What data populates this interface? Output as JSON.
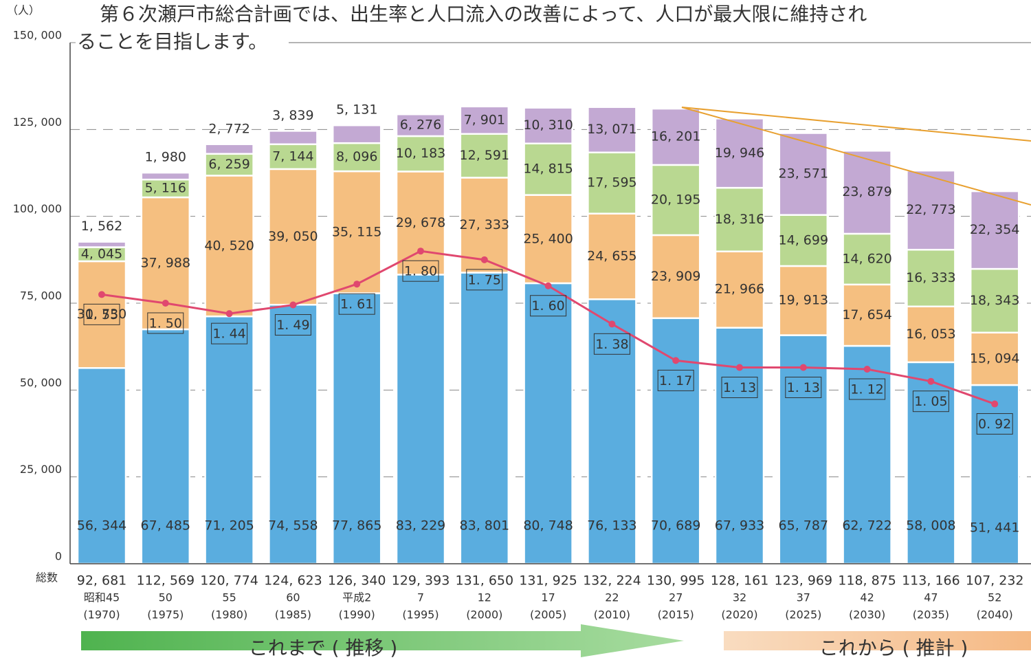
{
  "chart_data": {
    "type": "bar",
    "title_lines": [
      "第６次瀬戸市総合計画では、出生率と人口流入の改善によって、人口が最大限に維持され",
      "ることを目指します。"
    ],
    "y_unit": "（人）",
    "categories": [
      "昭和45",
      "50",
      "55",
      "60",
      "平成2",
      "7",
      "12",
      "17",
      "22",
      "27",
      "32",
      "37",
      "42",
      "47",
      "52"
    ],
    "years": [
      "(1970)",
      "(1975)",
      "(1980)",
      "(1985)",
      "(1990)",
      "(1995)",
      "(2000)",
      "(2005)",
      "(2010)",
      "(2015)",
      "(2020)",
      "(2025)",
      "(2030)",
      "(2035)",
      "(2040)"
    ],
    "totals": {
      "label": "総数",
      "values": [
        92681,
        112569,
        120774,
        124623,
        126340,
        129393,
        131650,
        131925,
        132224,
        130995,
        128161,
        123969,
        118875,
        113166,
        107232
      ],
      "value_labels": [
        "92, 681",
        "112, 569",
        "120, 774",
        "124, 623",
        "126, 340",
        "129, 393",
        "131, 650",
        "131, 925",
        "132, 224",
        "130, 995",
        "128, 161",
        "123, 969",
        "118, 875",
        "113, 166",
        "107, 232"
      ]
    },
    "series": [
      {
        "color": "#5aaddf",
        "values": [
          56344,
          67485,
          71205,
          74558,
          77865,
          83229,
          83801,
          80748,
          76133,
          70689,
          67933,
          65787,
          62722,
          58008,
          51441
        ],
        "value_labels": [
          "56, 344",
          "67, 485",
          "71, 205",
          "74, 558",
          "77, 865",
          "83, 229",
          "83, 801",
          "80, 748",
          "76, 133",
          "70, 689",
          "67, 933",
          "65, 787",
          "62, 722",
          "58, 008",
          "51, 441"
        ]
      },
      {
        "color": "#f5bf80",
        "values": [
          30730,
          37988,
          40520,
          39050,
          35115,
          29678,
          27333,
          25400,
          24655,
          23909,
          21966,
          19913,
          17654,
          16053,
          15094
        ],
        "value_labels": [
          "30, 730",
          "37, 988",
          "40, 520",
          "39, 050",
          "35, 115",
          "29, 678",
          "27, 333",
          "25, 400",
          "24, 655",
          "23, 909",
          "21, 966",
          "19, 913",
          "17, 654",
          "16, 053",
          "15, 094"
        ]
      },
      {
        "color": "#b9d891",
        "values": [
          4045,
          5116,
          6259,
          7144,
          8096,
          10183,
          12591,
          14815,
          17595,
          20195,
          18316,
          14699,
          14620,
          16333,
          18343
        ],
        "value_labels": [
          "4, 045",
          "5, 116",
          "6, 259",
          "7, 144",
          "8, 096",
          "10, 183",
          "12, 591",
          "14, 815",
          "17, 595",
          "20, 195",
          "18, 316",
          "14, 699",
          "14, 620",
          "16, 333",
          "18, 343"
        ]
      },
      {
        "color": "#c3a9d3",
        "values": [
          1562,
          1980,
          2772,
          3839,
          5131,
          6276,
          7901,
          10310,
          13071,
          16201,
          19946,
          23571,
          23879,
          22773,
          22354
        ],
        "value_labels": [
          "1, 562",
          "1, 980",
          "2, 772",
          "3, 839",
          "5, 131",
          "6, 276",
          "7, 901",
          "10, 310",
          "13, 071",
          "16, 201",
          "19, 946",
          "23, 571",
          "23, 879",
          "22, 773",
          "22, 354"
        ]
      }
    ],
    "line": {
      "axis": "y2",
      "color": "#e0486f",
      "values": [
        1.55,
        1.5,
        1.44,
        1.49,
        1.61,
        1.8,
        1.75,
        1.6,
        1.38,
        1.17,
        1.13,
        1.13,
        1.12,
        1.05,
        0.92
      ],
      "value_labels": [
        "1. 55",
        "1. 50",
        "1. 44",
        "1. 49",
        "1. 61",
        "1. 80",
        "1. 75",
        "1. 60",
        "1. 38",
        "1. 17",
        "1. 13",
        "1. 13",
        "1. 12",
        "1. 05",
        "0. 92"
      ]
    },
    "ylim": [
      0,
      150000
    ],
    "yticks": [
      {
        "value": 0,
        "label": "0"
      },
      {
        "value": 25000,
        "label": "25, 000"
      },
      {
        "value": 50000,
        "label": "50, 000"
      },
      {
        "value": 75000,
        "label": "75, 000"
      },
      {
        "value": 100000,
        "label": "100, 000"
      },
      {
        "value": 125000,
        "label": "125, 000"
      },
      {
        "value": 150000,
        "label": "150, 000"
      }
    ],
    "y2lim": [
      0,
      3
    ],
    "grid": true,
    "arrows": [
      "これまで ( 推移 )",
      "これから ( 推計 )"
    ]
  }
}
